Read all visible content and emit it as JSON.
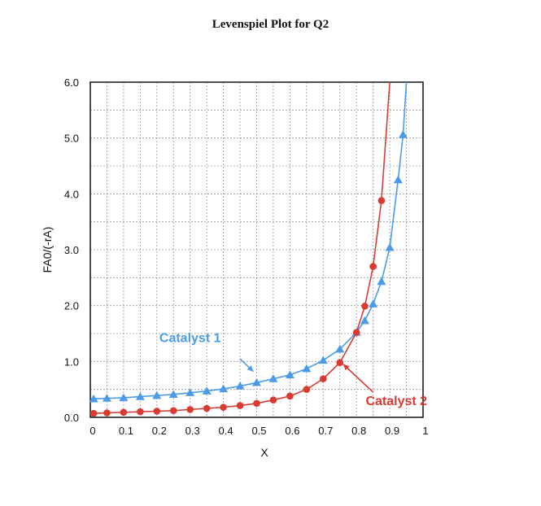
{
  "chart_data": {
    "type": "line",
    "title": "Levenspiel Plot for Q2",
    "xlabel": "X",
    "ylabel": "FA0/(-rA)",
    "xlim": [
      0,
      1
    ],
    "ylim": [
      0,
      6
    ],
    "x_ticks": [
      "0",
      "0.1",
      "0.2",
      "0.3",
      "0.4",
      "0.5",
      "0.6",
      "0.7",
      "0.8",
      "0.9",
      "1"
    ],
    "y_ticks": [
      "0.0",
      "1.0",
      "2.0",
      "3.0",
      "4.0",
      "5.0",
      "6.0"
    ],
    "grid": true,
    "series": [
      {
        "name": "Catalyst 1",
        "color": "#4a9be8",
        "marker": "triangle",
        "x": [
          0.01,
          0.05,
          0.1,
          0.15,
          0.2,
          0.25,
          0.3,
          0.35,
          0.4,
          0.45,
          0.5,
          0.55,
          0.6,
          0.65,
          0.7,
          0.75,
          0.8,
          0.825,
          0.85,
          0.875,
          0.9,
          0.925,
          0.94
        ],
        "y": [
          0.33,
          0.34,
          0.35,
          0.37,
          0.39,
          0.41,
          0.44,
          0.47,
          0.51,
          0.56,
          0.62,
          0.69,
          0.76,
          0.87,
          1.02,
          1.22,
          1.52,
          1.73,
          2.03,
          2.43,
          3.04,
          4.25,
          5.06
        ],
        "curve_end": [
          0.95,
          6.0
        ]
      },
      {
        "name": "Catalyst 2",
        "color": "#d83b31",
        "marker": "circle",
        "x": [
          0.01,
          0.05,
          0.1,
          0.15,
          0.2,
          0.25,
          0.3,
          0.35,
          0.4,
          0.45,
          0.5,
          0.55,
          0.6,
          0.65,
          0.7,
          0.75,
          0.8,
          0.825,
          0.85,
          0.875
        ],
        "y": [
          0.07,
          0.08,
          0.09,
          0.1,
          0.11,
          0.12,
          0.14,
          0.16,
          0.18,
          0.21,
          0.25,
          0.31,
          0.38,
          0.5,
          0.69,
          0.98,
          1.52,
          1.99,
          2.7,
          3.88
        ],
        "curve_end": [
          0.9,
          6.0
        ]
      }
    ],
    "annotations": [
      {
        "text": "Catalyst 1",
        "color": "#4a9be8",
        "text_at": [
          0.3,
          1.35
        ],
        "arrow_from": [
          0.45,
          1.05
        ],
        "arrow_to": [
          0.49,
          0.82
        ]
      },
      {
        "text": "Catalyst 2",
        "color": "#d83b31",
        "text_at": [
          0.92,
          0.22
        ],
        "arrow_from": [
          0.85,
          0.45
        ],
        "arrow_to": [
          0.76,
          0.95
        ]
      }
    ]
  }
}
